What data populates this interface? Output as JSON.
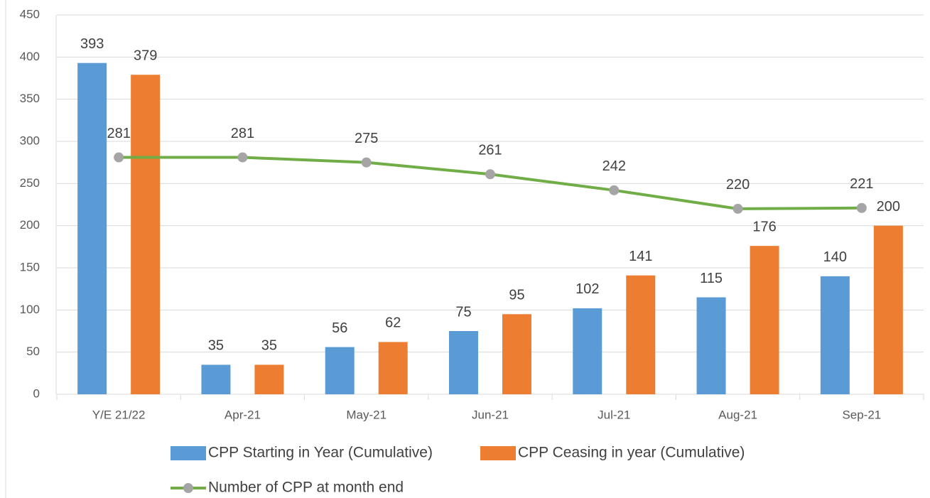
{
  "chart_data": {
    "type": "bar",
    "categories": [
      "Y/E 21/22",
      "Apr-21",
      "May-21",
      "Jun-21",
      "Jul-21",
      "Aug-21",
      "Sep-21"
    ],
    "series": [
      {
        "name": "CPP Starting in Year (Cumulative)",
        "type": "bar",
        "color": "#5b9bd5",
        "values": [
          393,
          35,
          56,
          75,
          102,
          115,
          140
        ]
      },
      {
        "name": "CPP Ceasing in year (Cumulative)",
        "type": "bar",
        "color": "#ed7d31",
        "values": [
          379,
          35,
          62,
          95,
          141,
          176,
          200
        ]
      },
      {
        "name": "Number of CPP at month end",
        "type": "line",
        "color": "#70ad47",
        "marker_color": "#a5a5a5",
        "values": [
          281,
          281,
          275,
          261,
          242,
          220,
          221
        ]
      }
    ],
    "ylim": [
      0,
      450
    ],
    "yticks": [
      0,
      50,
      100,
      150,
      200,
      250,
      300,
      350,
      400,
      450
    ],
    "grid": true,
    "legend": "bottom"
  }
}
